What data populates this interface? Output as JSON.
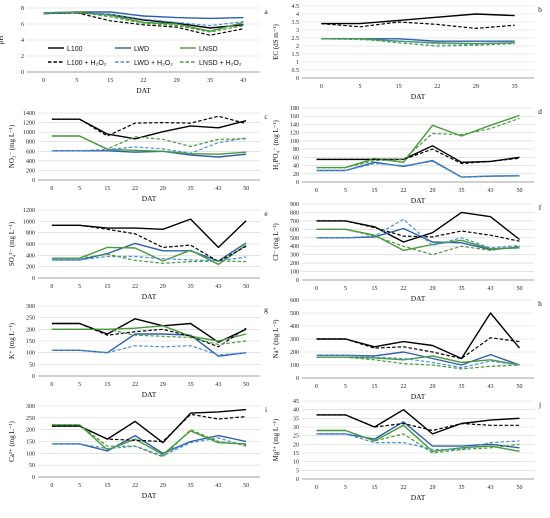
{
  "colors": {
    "L100": "#000000",
    "LWD": "#2e5fa8",
    "LNSD": "#4a9a3c",
    "LWD_dashed": "#4a90d9"
  },
  "legend": {
    "items": [
      {
        "label": "L100",
        "color": "#000000",
        "dash": false
      },
      {
        "label": "LWD",
        "color": "#2e5fa8",
        "dash": false
      },
      {
        "label": "LNSD",
        "color": "#4a9a3c",
        "dash": false
      },
      {
        "label": "L100 + H₂O₂",
        "color": "#000000",
        "dash": true
      },
      {
        "label": "LWD + H₂O₂",
        "color": "#4a90d9",
        "dash": true
      },
      {
        "label": "LNSD + H₂O₂",
        "color": "#4a9a3c",
        "dash": true
      }
    ]
  },
  "chart_data": [
    {
      "panel": "a",
      "type": "line",
      "xlabel": "DAT",
      "ylabel": "pH",
      "categories": [
        "0",
        "5",
        "15",
        "22",
        "29",
        "35",
        "43"
      ],
      "yticks": [
        0,
        2,
        4,
        6,
        8
      ],
      "ylim": [
        0,
        8
      ],
      "series": [
        {
          "name": "L100",
          "values": [
            7.3,
            7.4,
            7.2,
            6.5,
            6.1,
            5.5,
            5.9
          ]
        },
        {
          "name": "LWD",
          "values": [
            7.3,
            7.5,
            7.5,
            7.0,
            6.8,
            6.7,
            6.8
          ]
        },
        {
          "name": "LNSD",
          "values": [
            7.4,
            7.5,
            7.1,
            6.2,
            6.0,
            5.1,
            6.2
          ]
        },
        {
          "name": "L100 + H₂O₂",
          "values": [
            7.3,
            7.4,
            6.4,
            5.9,
            5.6,
            4.6,
            5.4
          ]
        },
        {
          "name": "LWD + H₂O₂",
          "values": [
            7.3,
            7.4,
            7.2,
            6.6,
            6.2,
            5.8,
            6.3
          ]
        },
        {
          "name": "LNSD + H₂O₂",
          "values": [
            7.4,
            7.5,
            6.9,
            6.1,
            5.8,
            5.0,
            5.8
          ]
        }
      ]
    },
    {
      "panel": "b",
      "type": "line",
      "xlabel": "DAT",
      "ylabel": "EC (dS m⁻¹)",
      "categories": [
        "0",
        "5",
        "15",
        "22",
        "29",
        "35"
      ],
      "yticks": [
        0,
        0.5,
        1,
        1.5,
        2,
        2.5,
        3,
        3.5,
        4,
        4.5
      ],
      "ylim": [
        0,
        4.5
      ],
      "series": [
        {
          "name": "L100",
          "values": [
            3.4,
            3.4,
            3.6,
            3.8,
            4.0,
            3.9
          ]
        },
        {
          "name": "LWD",
          "values": [
            2.45,
            2.45,
            2.45,
            2.3,
            2.3,
            2.3
          ]
        },
        {
          "name": "LNSD",
          "values": [
            2.45,
            2.45,
            2.3,
            2.2,
            2.15,
            2.2
          ]
        },
        {
          "name": "L100 + H₂O₂",
          "values": [
            3.4,
            3.2,
            3.5,
            3.35,
            3.1,
            3.3
          ]
        },
        {
          "name": "LWD + H₂O₂",
          "values": [
            2.45,
            2.4,
            2.3,
            2.15,
            2.1,
            2.2
          ]
        },
        {
          "name": "LNSD + H₂O₂",
          "values": [
            2.45,
            2.45,
            2.2,
            2.0,
            2.05,
            2.15
          ]
        }
      ]
    },
    {
      "panel": "c",
      "type": "line",
      "xlabel": "DAT",
      "ylabel": "NO₃⁻ (mg L⁻¹)",
      "categories": [
        "0",
        "5",
        "15",
        "22",
        "29",
        "35",
        "43",
        "50"
      ],
      "yticks": [
        0,
        200,
        400,
        600,
        800,
        1000,
        1200,
        1400
      ],
      "ylim": [
        0,
        1400
      ],
      "series": [
        {
          "name": "L100",
          "values": [
            1270,
            1270,
            960,
            860,
            1010,
            1130,
            1090,
            1240
          ]
        },
        {
          "name": "LWD",
          "values": [
            610,
            610,
            610,
            580,
            600,
            520,
            480,
            540
          ]
        },
        {
          "name": "LNSD",
          "values": [
            920,
            920,
            640,
            620,
            600,
            550,
            540,
            580
          ]
        },
        {
          "name": "L100 + H₂O₂",
          "values": [
            1270,
            1270,
            920,
            1190,
            1200,
            1190,
            1330,
            1180
          ]
        },
        {
          "name": "LWD + H₂O₂",
          "values": [
            610,
            610,
            640,
            690,
            650,
            560,
            780,
            880
          ]
        },
        {
          "name": "LNSD + H₂O₂",
          "values": [
            920,
            920,
            650,
            900,
            850,
            700,
            850,
            860
          ]
        }
      ]
    },
    {
      "panel": "d",
      "type": "line",
      "xlabel": "DAT",
      "ylabel": "H₂PO₄⁻ (mg L⁻¹)",
      "categories": [
        "0",
        "5",
        "15",
        "22",
        "29",
        "35",
        "43",
        "50"
      ],
      "yticks": [
        0,
        20,
        40,
        60,
        80,
        100,
        120,
        140,
        160,
        180
      ],
      "ylim": [
        0,
        180
      ],
      "series": [
        {
          "name": "L100",
          "values": [
            55,
            55,
            55,
            55,
            88,
            48,
            50,
            60
          ]
        },
        {
          "name": "LWD",
          "values": [
            28,
            28,
            48,
            38,
            52,
            12,
            14,
            15
          ]
        },
        {
          "name": "LNSD",
          "values": [
            35,
            35,
            57,
            48,
            138,
            112,
            138,
            162
          ]
        },
        {
          "name": "L100 + H₂O₂",
          "values": [
            55,
            55,
            55,
            55,
            80,
            45,
            50,
            58
          ]
        },
        {
          "name": "LWD + H₂O₂",
          "values": [
            28,
            28,
            45,
            40,
            50,
            12,
            15,
            16
          ]
        },
        {
          "name": "LNSD + H₂O₂",
          "values": [
            35,
            35,
            52,
            55,
            118,
            115,
            130,
            155
          ]
        }
      ]
    },
    {
      "panel": "e",
      "type": "line",
      "xlabel": "DAT",
      "ylabel": "SO₄²⁻ (mg L⁻¹)",
      "categories": [
        "0",
        "5",
        "15",
        "22",
        "29",
        "35",
        "43",
        "50"
      ],
      "yticks": [
        0,
        200,
        400,
        600,
        800,
        1000,
        1200
      ],
      "ylim": [
        0,
        1200
      ],
      "series": [
        {
          "name": "L100",
          "values": [
            930,
            930,
            880,
            880,
            860,
            1040,
            540,
            1010
          ]
        },
        {
          "name": "LWD",
          "values": [
            320,
            320,
            430,
            610,
            480,
            480,
            300,
            620
          ]
        },
        {
          "name": "LNSD",
          "values": [
            350,
            350,
            540,
            530,
            300,
            490,
            240,
            580
          ]
        },
        {
          "name": "L100 + H₂O₂",
          "values": [
            930,
            930,
            860,
            780,
            540,
            580,
            290,
            560
          ]
        },
        {
          "name": "LWD + H₂O₂",
          "values": [
            320,
            320,
            380,
            380,
            340,
            320,
            300,
            370
          ]
        },
        {
          "name": "LNSD + H₂O₂",
          "values": [
            350,
            350,
            420,
            310,
            260,
            290,
            300,
            290
          ]
        }
      ]
    },
    {
      "panel": "f",
      "type": "line",
      "xlabel": "DAT",
      "ylabel": "Cl⁻ (mg L⁻¹)",
      "categories": [
        "0",
        "5",
        "15",
        "22",
        "29",
        "35",
        "43",
        "50"
      ],
      "yticks": [
        0,
        100,
        200,
        300,
        400,
        500,
        600,
        700,
        800,
        900
      ],
      "ylim": [
        0,
        900
      ],
      "series": [
        {
          "name": "L100",
          "values": [
            700,
            700,
            630,
            450,
            560,
            800,
            750,
            480
          ]
        },
        {
          "name": "LWD",
          "values": [
            500,
            500,
            510,
            610,
            450,
            440,
            360,
            390
          ]
        },
        {
          "name": "LNSD",
          "values": [
            600,
            600,
            530,
            350,
            420,
            470,
            370,
            380
          ]
        },
        {
          "name": "L100 + H₂O₂",
          "values": [
            700,
            700,
            620,
            520,
            510,
            580,
            530,
            460
          ]
        },
        {
          "name": "LWD + H₂O₂",
          "values": [
            500,
            500,
            520,
            720,
            410,
            500,
            380,
            410
          ]
        },
        {
          "name": "LNSD + H₂O₂",
          "values": [
            600,
            600,
            520,
            400,
            300,
            400,
            350,
            400
          ]
        }
      ]
    },
    {
      "panel": "g",
      "type": "line",
      "xlabel": "DAT",
      "ylabel": "K⁺ (mg L⁻¹)",
      "categories": [
        "0",
        "5",
        "15",
        "22",
        "29",
        "35",
        "43",
        "50"
      ],
      "yticks": [
        0,
        50,
        100,
        150,
        200,
        250,
        300
      ],
      "ylim": [
        0,
        300
      ],
      "series": [
        {
          "name": "L100",
          "values": [
            225,
            225,
            180,
            245,
            215,
            225,
            145,
            200
          ]
        },
        {
          "name": "LWD",
          "values": [
            110,
            110,
            100,
            180,
            180,
            175,
            85,
            100
          ]
        },
        {
          "name": "LNSD",
          "values": [
            200,
            200,
            200,
            205,
            215,
            170,
            150,
            180
          ]
        },
        {
          "name": "L100 + H₂O₂",
          "values": [
            225,
            225,
            175,
            190,
            200,
            170,
            125,
            205
          ]
        },
        {
          "name": "LWD + H₂O₂",
          "values": [
            110,
            110,
            100,
            130,
            125,
            130,
            90,
            100
          ]
        },
        {
          "name": "LNSD + H₂O₂",
          "values": [
            200,
            200,
            200,
            175,
            170,
            165,
            135,
            150
          ]
        }
      ]
    },
    {
      "panel": "h",
      "type": "line",
      "xlabel": "DAT",
      "ylabel": "Na⁺ (mg L⁻¹)",
      "categories": [
        "0",
        "5",
        "15",
        "22",
        "29",
        "35",
        "43",
        "50"
      ],
      "yticks": [
        0,
        100,
        200,
        300,
        400,
        500,
        600
      ],
      "ylim": [
        0,
        600
      ],
      "series": [
        {
          "name": "L100",
          "values": [
            300,
            300,
            240,
            280,
            250,
            150,
            500,
            230
          ]
        },
        {
          "name": "LWD",
          "values": [
            175,
            175,
            170,
            200,
            150,
            100,
            180,
            100
          ]
        },
        {
          "name": "LNSD",
          "values": [
            160,
            160,
            155,
            140,
            170,
            120,
            140,
            100
          ]
        },
        {
          "name": "L100 + H₂O₂",
          "values": [
            300,
            300,
            230,
            240,
            200,
            150,
            310,
            280
          ]
        },
        {
          "name": "LWD + H₂O₂",
          "values": [
            175,
            175,
            160,
            150,
            120,
            80,
            130,
            100
          ]
        },
        {
          "name": "LNSD + H₂O₂",
          "values": [
            160,
            160,
            140,
            110,
            100,
            70,
            90,
            100
          ]
        }
      ]
    },
    {
      "panel": "i",
      "type": "line",
      "xlabel": "DAT",
      "ylabel": "Ca²⁺ (mg L⁻¹)",
      "categories": [
        "0",
        "5",
        "15",
        "22",
        "29",
        "35",
        "43",
        "50"
      ],
      "yticks": [
        0,
        50,
        100,
        150,
        200,
        250,
        300
      ],
      "ylim": [
        0,
        300
      ],
      "series": [
        {
          "name": "L100",
          "values": [
            215,
            215,
            160,
            235,
            145,
            270,
            275,
            285
          ]
        },
        {
          "name": "LWD",
          "values": [
            140,
            140,
            110,
            175,
            100,
            150,
            175,
            150
          ]
        },
        {
          "name": "LNSD",
          "values": [
            220,
            220,
            115,
            160,
            95,
            195,
            145,
            140
          ]
        },
        {
          "name": "L100 + H₂O₂",
          "values": [
            215,
            215,
            160,
            155,
            150,
            265,
            245,
            255
          ]
        },
        {
          "name": "LWD + H₂O₂",
          "values": [
            140,
            140,
            120,
            130,
            90,
            145,
            165,
            130
          ]
        },
        {
          "name": "LNSD + H₂O₂",
          "values": [
            220,
            220,
            130,
            130,
            85,
            200,
            150,
            135
          ]
        }
      ]
    },
    {
      "panel": "j",
      "type": "line",
      "xlabel": "DAT",
      "ylabel": "Mg²⁺ (mg L⁻¹)",
      "categories": [
        "0",
        "5",
        "15",
        "22",
        "29",
        "35",
        "43",
        "50"
      ],
      "yticks": [
        0,
        5,
        10,
        15,
        20,
        25,
        30,
        35,
        40,
        45
      ],
      "ylim": [
        0,
        45
      ],
      "series": [
        {
          "name": "L100",
          "values": [
            37,
            37,
            30,
            40,
            26,
            32,
            34,
            35
          ]
        },
        {
          "name": "LWD",
          "values": [
            26,
            26,
            23,
            33,
            19,
            19,
            20,
            18
          ]
        },
        {
          "name": "LNSD",
          "values": [
            28,
            28,
            22,
            31,
            16,
            18,
            19,
            16
          ]
        },
        {
          "name": "L100 + H₂O₂",
          "values": [
            37,
            37,
            30,
            32,
            28,
            32,
            31,
            31
          ]
        },
        {
          "name": "LWD + H₂O₂",
          "values": [
            26,
            26,
            21,
            21,
            17,
            17,
            21,
            22
          ]
        },
        {
          "name": "LNSD + H₂O₂",
          "values": [
            28,
            28,
            22,
            26,
            15,
            17,
            18,
            20
          ]
        }
      ]
    }
  ]
}
